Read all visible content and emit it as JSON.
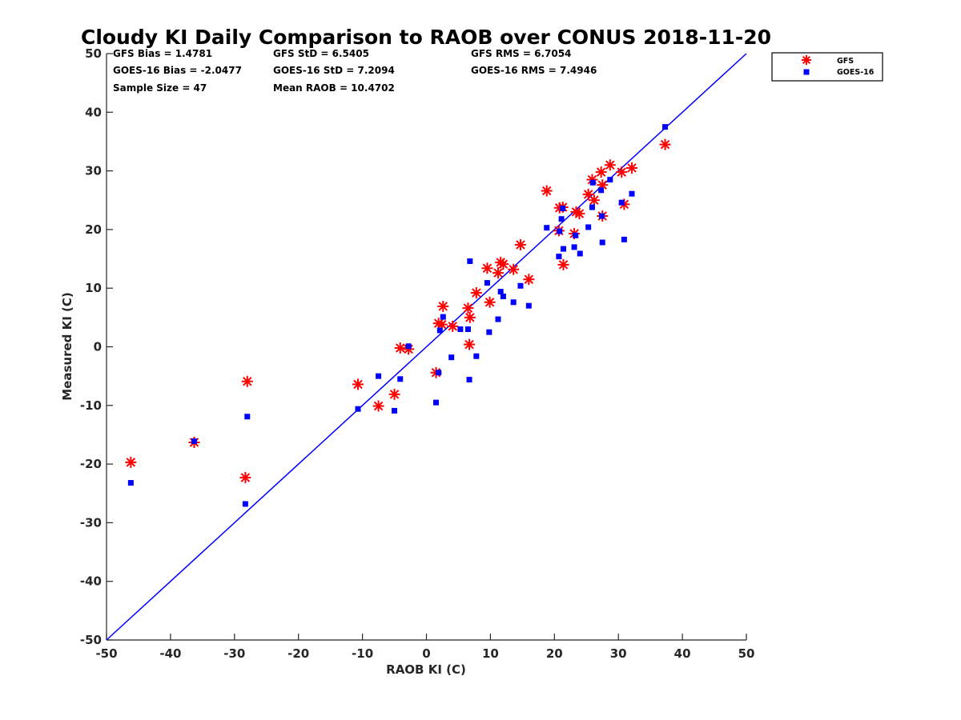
{
  "colors": {
    "gfs": "#ff0000",
    "goes": "#0000ff",
    "one_to_one": "#0000ff",
    "axis": "#262626"
  },
  "chart_data": {
    "type": "scatter",
    "title": "Cloudy KI Daily Comparison to RAOB over CONUS 2018-11-20",
    "xlabel": "RAOB KI (C)",
    "ylabel": "Measured KI (C)",
    "xlim": [
      -50,
      50
    ],
    "ylim": [
      -50,
      50
    ],
    "xticks": [
      "-50",
      "-40",
      "-30",
      "-20",
      "-10",
      "0",
      "10",
      "20",
      "30",
      "40",
      "50"
    ],
    "yticks": [
      "-50",
      "-40",
      "-30",
      "-20",
      "-10",
      "0",
      "10",
      "20",
      "30",
      "40",
      "50"
    ],
    "grid": false,
    "legend_position": "outside-top-right",
    "reference_line": {
      "x": [
        -50,
        50
      ],
      "y": [
        -50,
        50
      ]
    },
    "stats": [
      [
        "GFS Bias = 1.4781",
        "GFS StD = 6.5405",
        "GFS RMS = 6.7054"
      ],
      [
        "GOES-16 Bias = -2.0477",
        "GOES-16 StD = 7.2094",
        "GOES-16 RMS = 7.4946"
      ],
      [
        "Sample Size = 47",
        "Mean RAOB = 10.4702"
      ]
    ],
    "series": [
      {
        "name": "GFS",
        "marker": "asterisk",
        "points": [
          [
            -46.2,
            -19.7
          ],
          [
            -36.3,
            -16.3
          ],
          [
            -28.3,
            -22.3
          ],
          [
            -28.0,
            -5.9
          ],
          [
            -10.7,
            -6.4
          ],
          [
            -7.5,
            -10.1
          ],
          [
            -5.0,
            -8.1
          ],
          [
            -4.1,
            -0.2
          ],
          [
            -2.8,
            -0.4
          ],
          [
            1.5,
            -4.4
          ],
          [
            1.9,
            4.0
          ],
          [
            2.4,
            3.8
          ],
          [
            2.6,
            6.9
          ],
          [
            4.1,
            3.5
          ],
          [
            6.5,
            6.6
          ],
          [
            6.7,
            0.4
          ],
          [
            6.8,
            5.0
          ],
          [
            7.8,
            9.2
          ],
          [
            9.5,
            13.4
          ],
          [
            9.9,
            7.6
          ],
          [
            11.2,
            12.6
          ],
          [
            11.6,
            14.4
          ],
          [
            12.0,
            14.1
          ],
          [
            13.6,
            13.2
          ],
          [
            14.7,
            17.4
          ],
          [
            16.0,
            11.5
          ],
          [
            18.8,
            26.6
          ],
          [
            20.7,
            19.8
          ],
          [
            20.8,
            23.7
          ],
          [
            21.3,
            23.8
          ],
          [
            21.4,
            14.0
          ],
          [
            23.1,
            19.3
          ],
          [
            23.4,
            23.0
          ],
          [
            23.9,
            22.7
          ],
          [
            25.3,
            26.0
          ],
          [
            25.9,
            28.5
          ],
          [
            26.2,
            25.0
          ],
          [
            27.3,
            29.8
          ],
          [
            27.5,
            27.6
          ],
          [
            27.5,
            22.3
          ],
          [
            28.7,
            31.0
          ],
          [
            30.5,
            29.8
          ],
          [
            30.9,
            24.3
          ],
          [
            32.1,
            30.5
          ],
          [
            37.3,
            34.5
          ]
        ]
      },
      {
        "name": "GOES-16",
        "marker": "square",
        "points": [
          [
            -46.2,
            -23.2
          ],
          [
            -36.3,
            -16.1
          ],
          [
            -28.3,
            -26.8
          ],
          [
            -28.0,
            -11.9
          ],
          [
            -10.7,
            -10.6
          ],
          [
            -7.5,
            -5.0
          ],
          [
            -5.0,
            -10.9
          ],
          [
            -4.1,
            -5.5
          ],
          [
            -2.8,
            0.1
          ],
          [
            1.5,
            -9.5
          ],
          [
            1.9,
            -4.4
          ],
          [
            2.1,
            2.8
          ],
          [
            2.6,
            5.1
          ],
          [
            3.9,
            -1.8
          ],
          [
            5.3,
            3.0
          ],
          [
            6.5,
            3.0
          ],
          [
            6.7,
            -5.6
          ],
          [
            6.8,
            14.6
          ],
          [
            7.8,
            -1.6
          ],
          [
            9.5,
            10.9
          ],
          [
            9.8,
            2.5
          ],
          [
            11.2,
            4.7
          ],
          [
            11.6,
            9.4
          ],
          [
            12.0,
            8.6
          ],
          [
            13.6,
            7.6
          ],
          [
            14.7,
            10.4
          ],
          [
            16.0,
            7.0
          ],
          [
            18.8,
            20.3
          ],
          [
            20.7,
            15.4
          ],
          [
            20.8,
            19.7
          ],
          [
            21.1,
            21.8
          ],
          [
            21.3,
            23.6
          ],
          [
            21.4,
            16.7
          ],
          [
            23.1,
            17.0
          ],
          [
            23.3,
            19.0
          ],
          [
            24.0,
            15.9
          ],
          [
            25.3,
            20.4
          ],
          [
            25.9,
            23.8
          ],
          [
            26.0,
            28.0
          ],
          [
            27.3,
            26.7
          ],
          [
            27.4,
            22.3
          ],
          [
            27.5,
            17.8
          ],
          [
            28.7,
            28.5
          ],
          [
            30.5,
            24.6
          ],
          [
            30.9,
            18.3
          ],
          [
            32.1,
            26.1
          ],
          [
            37.3,
            37.5
          ]
        ]
      }
    ]
  }
}
